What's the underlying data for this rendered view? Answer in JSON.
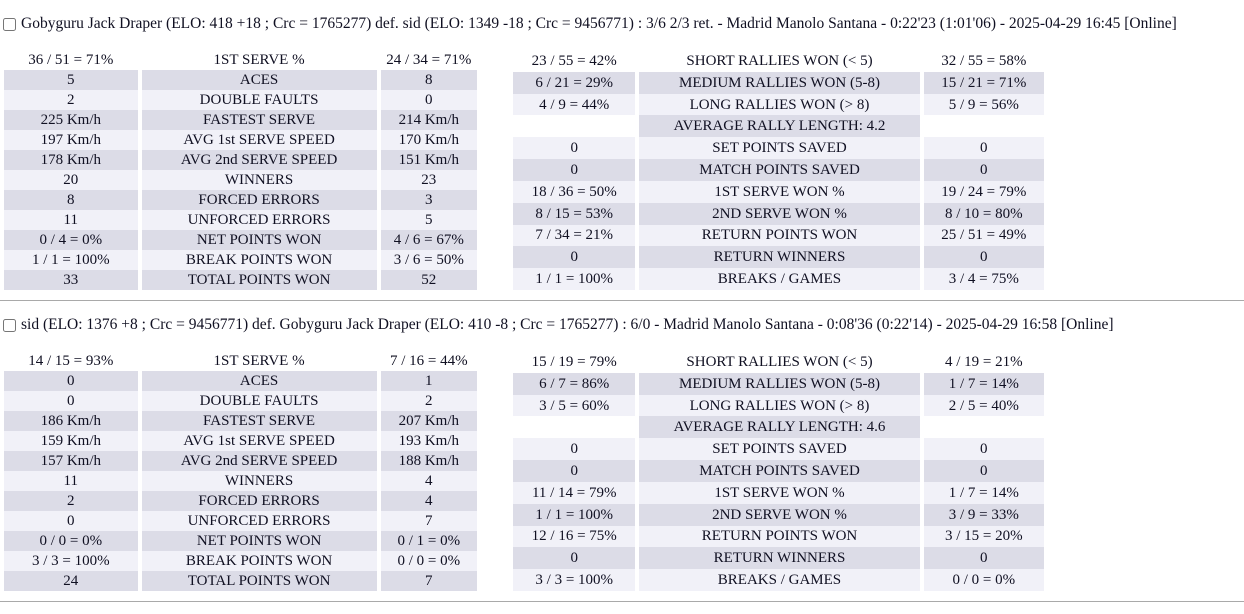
{
  "page": {
    "background_color": "#ffffff",
    "row_stripe_even_color": "#dcdce7",
    "row_stripe_odd_color": "#f1f1f8",
    "separator_color": "#a9a9a9"
  },
  "matches": [
    {
      "header_label": "Gobyguru Jack Draper (ELO: 418 +18 ; Crc = 1765277) def. sid (ELO: 1349 -18 ; Crc = 9456771) : 3/6 2/3 ret. - Madrid Manolo Santana - 0:22'23 (1:01'06) - 2025-04-29 16:45 [Online]",
      "serve_table": {
        "rows": [
          [
            "36 / 51 = 71%",
            "1ST SERVE %",
            "24 / 34 = 71%"
          ],
          [
            "5",
            "ACES",
            "8"
          ],
          [
            "2",
            "DOUBLE FAULTS",
            "0"
          ],
          [
            "225 Km/h",
            "FASTEST SERVE",
            "214 Km/h"
          ],
          [
            "197 Km/h",
            "AVG 1st SERVE SPEED",
            "170 Km/h"
          ],
          [
            "178 Km/h",
            "AVG 2nd SERVE SPEED",
            "151 Km/h"
          ],
          [
            "20",
            "WINNERS",
            "23"
          ],
          [
            "8",
            "FORCED ERRORS",
            "3"
          ],
          [
            "11",
            "UNFORCED ERRORS",
            "5"
          ],
          [
            "0 / 4 = 0%",
            "NET POINTS WON",
            "4 / 6 = 67%"
          ],
          [
            "1 / 1 = 100%",
            "BREAK POINTS WON",
            "3 / 6 = 50%"
          ],
          [
            "33",
            "TOTAL POINTS WON",
            "52"
          ]
        ]
      },
      "rally_table": {
        "rows": [
          [
            "23 / 55 = 42%",
            "SHORT RALLIES WON (< 5)",
            "32 / 55 = 58%"
          ],
          [
            "6 / 21 = 29%",
            "MEDIUM RALLIES WON (5-8)",
            "15 / 21 = 71%"
          ],
          [
            "4 / 9 = 44%",
            "LONG RALLIES WON (> 8)",
            "5 / 9 = 56%"
          ],
          [
            "",
            "AVERAGE RALLY LENGTH: 4.2",
            ""
          ],
          [
            "0",
            "SET POINTS SAVED",
            "0"
          ],
          [
            "0",
            "MATCH POINTS SAVED",
            "0"
          ],
          [
            "18 / 36 = 50%",
            "1ST SERVE WON %",
            "19 / 24 = 79%"
          ],
          [
            "8 / 15 = 53%",
            "2ND SERVE WON %",
            "8 / 10 = 80%"
          ],
          [
            "7 / 34 = 21%",
            "RETURN POINTS WON",
            "25 / 51 = 49%"
          ],
          [
            "0",
            "RETURN WINNERS",
            "0"
          ],
          [
            "1 / 1 = 100%",
            "BREAKS / GAMES",
            "3 / 4 = 75%"
          ]
        ]
      }
    },
    {
      "header_label": "sid (ELO: 1376 +8 ; Crc = 9456771) def. Gobyguru Jack Draper (ELO: 410 -8 ; Crc = 1765277) : 6/0 - Madrid Manolo Santana - 0:08'36 (0:22'14) - 2025-04-29 16:58 [Online]",
      "serve_table": {
        "rows": [
          [
            "14 / 15 = 93%",
            "1ST SERVE %",
            "7 / 16 = 44%"
          ],
          [
            "0",
            "ACES",
            "1"
          ],
          [
            "0",
            "DOUBLE FAULTS",
            "2"
          ],
          [
            "186 Km/h",
            "FASTEST SERVE",
            "207 Km/h"
          ],
          [
            "159 Km/h",
            "AVG 1st SERVE SPEED",
            "193 Km/h"
          ],
          [
            "157 Km/h",
            "AVG 2nd SERVE SPEED",
            "188 Km/h"
          ],
          [
            "11",
            "WINNERS",
            "4"
          ],
          [
            "2",
            "FORCED ERRORS",
            "4"
          ],
          [
            "0",
            "UNFORCED ERRORS",
            "7"
          ],
          [
            "0 / 0 = 0%",
            "NET POINTS WON",
            "0 / 1 = 0%"
          ],
          [
            "3 / 3 = 100%",
            "BREAK POINTS WON",
            "0 / 0 = 0%"
          ],
          [
            "24",
            "TOTAL POINTS WON",
            "7"
          ]
        ]
      },
      "rally_table": {
        "rows": [
          [
            "15 / 19 = 79%",
            "SHORT RALLIES WON (< 5)",
            "4 / 19 = 21%"
          ],
          [
            "6 / 7 = 86%",
            "MEDIUM RALLIES WON (5-8)",
            "1 / 7 = 14%"
          ],
          [
            "3 / 5 = 60%",
            "LONG RALLIES WON (> 8)",
            "2 / 5 = 40%"
          ],
          [
            "",
            "AVERAGE RALLY LENGTH: 4.6",
            ""
          ],
          [
            "0",
            "SET POINTS SAVED",
            "0"
          ],
          [
            "0",
            "MATCH POINTS SAVED",
            "0"
          ],
          [
            "11 / 14 = 79%",
            "1ST SERVE WON %",
            "1 / 7 = 14%"
          ],
          [
            "1 / 1 = 100%",
            "2ND SERVE WON %",
            "3 / 9 = 33%"
          ],
          [
            "12 / 16 = 75%",
            "RETURN POINTS WON",
            "3 / 15 = 20%"
          ],
          [
            "0",
            "RETURN WINNERS",
            "0"
          ],
          [
            "3 / 3 = 100%",
            "BREAKS / GAMES",
            "0 / 0 = 0%"
          ]
        ]
      }
    }
  ]
}
